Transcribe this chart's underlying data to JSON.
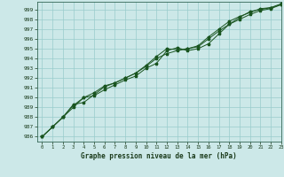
{
  "title": "Graphe pression niveau de la mer (hPa)",
  "xlim": [
    -0.5,
    23
  ],
  "ylim": [
    985.5,
    999.8
  ],
  "yticks": [
    986,
    987,
    988,
    989,
    990,
    991,
    992,
    993,
    994,
    995,
    996,
    997,
    998,
    999
  ],
  "xticks": [
    0,
    1,
    2,
    3,
    4,
    5,
    6,
    7,
    8,
    9,
    10,
    11,
    12,
    13,
    14,
    15,
    16,
    17,
    18,
    19,
    20,
    21,
    22,
    23
  ],
  "background_color": "#cce8e8",
  "grid_color": "#99cccc",
  "line_color": "#1a5520",
  "series1": [
    986.0,
    987.0,
    988.0,
    989.0,
    990.0,
    990.2,
    990.8,
    991.3,
    991.8,
    992.2,
    993.0,
    993.5,
    994.8,
    995.1,
    994.8,
    995.0,
    995.5,
    996.5,
    997.5,
    998.2,
    998.8,
    999.0,
    999.2,
    999.6
  ],
  "series2": [
    986.0,
    987.0,
    988.0,
    989.2,
    990.0,
    990.5,
    991.2,
    991.5,
    992.0,
    992.5,
    993.2,
    994.0,
    994.5,
    994.8,
    995.0,
    995.2,
    996.0,
    996.8,
    997.5,
    998.0,
    998.5,
    998.9,
    999.1,
    999.5
  ],
  "series3": [
    986.0,
    987.0,
    988.0,
    989.3,
    989.5,
    990.3,
    991.1,
    991.5,
    992.0,
    992.5,
    993.3,
    994.2,
    995.0,
    994.9,
    995.0,
    995.3,
    996.2,
    997.0,
    997.8,
    998.3,
    998.7,
    999.1,
    999.2,
    999.5
  ]
}
